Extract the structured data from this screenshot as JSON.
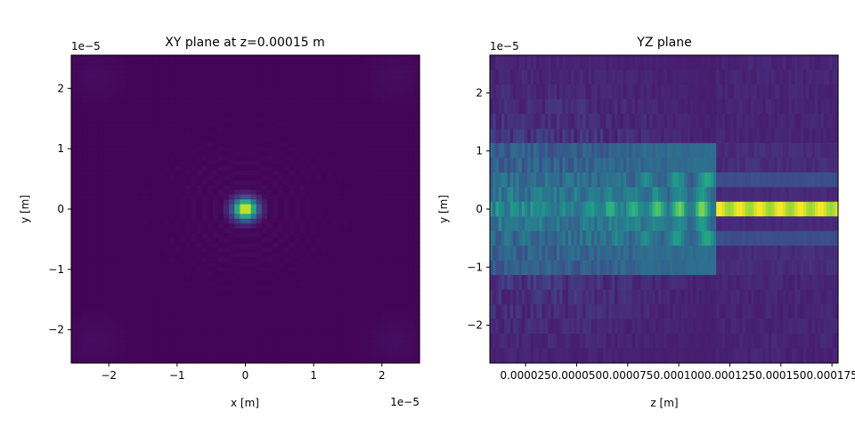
{
  "chart_data": [
    {
      "type": "heatmap",
      "title": "XY plane at z=0.00015 m",
      "xlabel": "x [m]",
      "ylabel": "y [m]",
      "xlim": [
        -2.55e-05,
        2.55e-05
      ],
      "ylim": [
        -2.55e-05,
        2.55e-05
      ],
      "xticks": [
        -2e-05,
        -1e-05,
        0,
        1e-05,
        2e-05
      ],
      "xtick_labels": [
        "−2",
        "−1",
        "0",
        "1",
        "2"
      ],
      "yticks": [
        -2e-05,
        -1e-05,
        0,
        1e-05,
        2e-05
      ],
      "ytick_labels": [
        "−2",
        "−1",
        "0",
        "1",
        "2"
      ],
      "x_offset_label": "1e−5",
      "y_offset_label": "1e−5",
      "colormap": "viridis",
      "grid": false,
      "field": {
        "description_type": "focused spot",
        "center": [
          0,
          0
        ],
        "peak_intensity": 1.0,
        "spot_radius": 1.2e-06,
        "ring_period": 1.5e-06,
        "background": 0.04
      }
    },
    {
      "type": "heatmap",
      "title": "YZ plane",
      "xlabel": "z [m]",
      "ylabel": "y [m]",
      "xlim": [
        7.5e-06,
        0.000178
      ],
      "ylim": [
        -2.65e-05,
        2.65e-05
      ],
      "xticks": [
        2.5e-05,
        5e-05,
        7.5e-05,
        0.0001,
        0.000125,
        0.00015,
        0.000175
      ],
      "xtick_labels": [
        "0.000025",
        "0.000050",
        "0.000075",
        "0.000100",
        "0.000125",
        "0.000150",
        "0.000175"
      ],
      "yticks": [
        -2e-05,
        -1e-05,
        0,
        1e-05,
        2e-05
      ],
      "ytick_labels": [
        "−2",
        "−1",
        "0",
        "1",
        "2"
      ],
      "y_offset_label": "1e−5",
      "colormap": "viridis",
      "grid": false,
      "y_bins": 21,
      "field": {
        "beam_focus_start_z": 0.000118,
        "beam_peak_intensity": 1.0,
        "mid_band_intensity": 0.55,
        "side_band_intensity": 0.38,
        "background": 0.08
      }
    }
  ]
}
